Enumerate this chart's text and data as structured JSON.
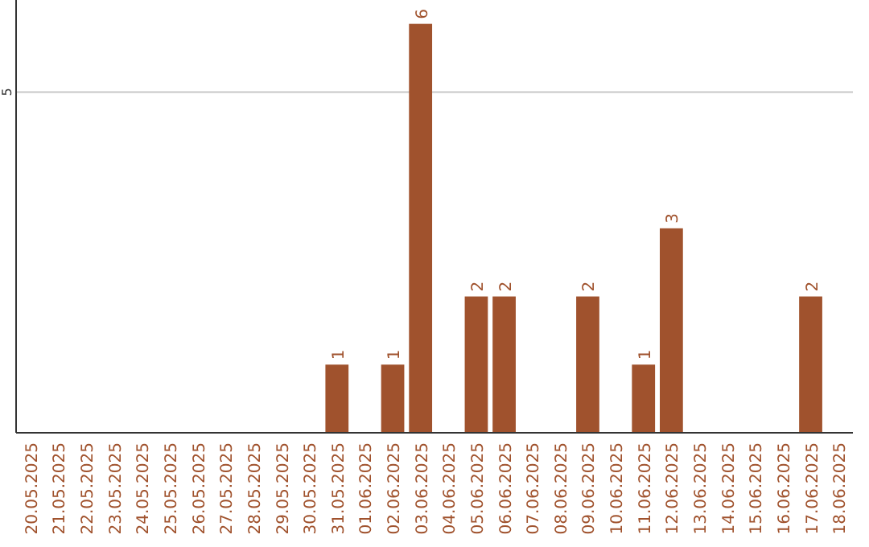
{
  "chart_data": {
    "type": "bar",
    "categories": [
      "20.05.2025",
      "21.05.2025",
      "22.05.2025",
      "23.05.2025",
      "24.05.2025",
      "25.05.2025",
      "26.05.2025",
      "27.05.2025",
      "28.05.2025",
      "29.05.2025",
      "30.05.2025",
      "31.05.2025",
      "01.06.2025",
      "02.06.2025",
      "03.06.2025",
      "04.06.2025",
      "05.06.2025",
      "06.06.2025",
      "07.06.2025",
      "08.06.2025",
      "09.06.2025",
      "10.06.2025",
      "11.06.2025",
      "12.06.2025",
      "13.06.2025",
      "14.06.2025",
      "15.06.2025",
      "16.06.2025",
      "17.06.2025",
      "18.06.2025"
    ],
    "values": [
      0,
      0,
      0,
      0,
      0,
      0,
      0,
      0,
      0,
      0,
      0,
      1,
      0,
      1,
      6,
      0,
      2,
      2,
      0,
      0,
      2,
      0,
      1,
      3,
      0,
      0,
      0,
      0,
      2,
      0
    ],
    "value_labels": [
      null,
      null,
      null,
      null,
      null,
      null,
      null,
      null,
      null,
      null,
      null,
      "1",
      null,
      "1",
      "6",
      null,
      "2",
      "2",
      null,
      null,
      "2",
      null,
      "1",
      "3",
      null,
      null,
      null,
      null,
      "2",
      null
    ],
    "color": "#a0522d",
    "ylim": [
      0,
      6.35
    ],
    "yticks": [
      5
    ],
    "grid": "y"
  }
}
